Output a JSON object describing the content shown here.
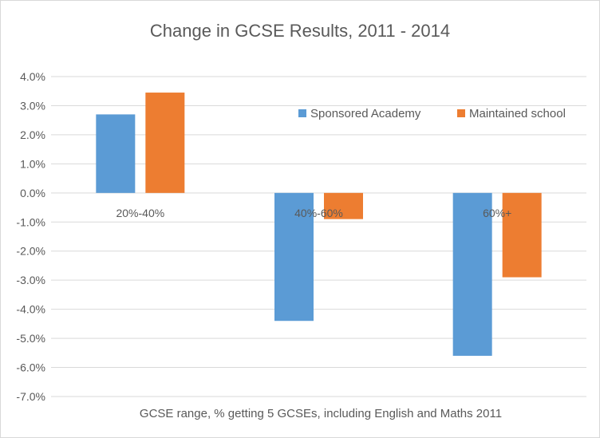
{
  "chart_data": {
    "type": "bar",
    "title": "Change in GCSE Results, 2011 - 2014",
    "xlabel": "GCSE range, % getting 5 GCSEs, including English and Maths 2011",
    "ylabel": "",
    "categories": [
      "20%-40%",
      "40%-60%",
      "60%+"
    ],
    "series": [
      {
        "name": "Sponsored Academy",
        "color": "#5b9bd5",
        "values": [
          2.7,
          -4.4,
          -5.6
        ]
      },
      {
        "name": "Maintained school",
        "color": "#ed7d31",
        "values": [
          3.45,
          -0.9,
          -2.9
        ]
      }
    ],
    "ylim": [
      -7,
      4
    ],
    "yticks": [
      4,
      3,
      2,
      1,
      0,
      -1,
      -2,
      -3,
      -4,
      -5,
      -6,
      -7
    ],
    "ytick_labels": [
      "4.0%",
      "3.0%",
      "2.0%",
      "1.0%",
      "0.0%",
      "-1.0%",
      "-2.0%",
      "-3.0%",
      "-4.0%",
      "-5.0%",
      "-6.0%",
      "-7.0%"
    ],
    "grid": true,
    "legend_position": "top-right"
  }
}
